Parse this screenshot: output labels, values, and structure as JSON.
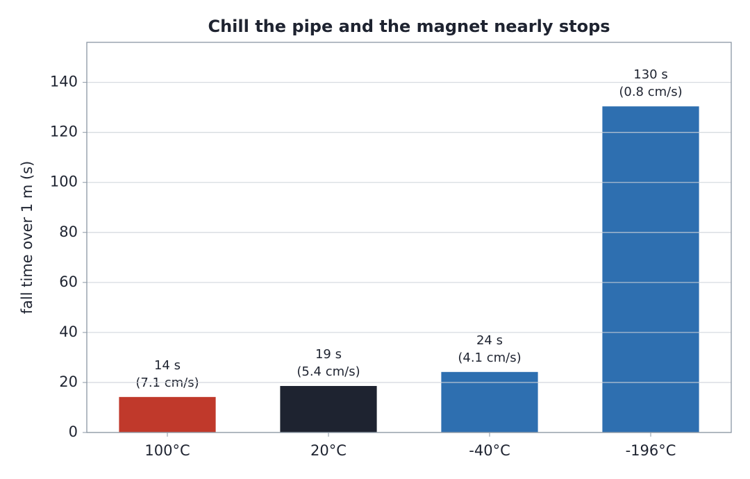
{
  "chart_data": {
    "type": "bar",
    "title": "Chill the pipe and the magnet nearly stops",
    "ylabel": "fall time over 1 m  (s)",
    "categories": [
      "100°C",
      "20°C",
      "-40°C",
      "-196°C"
    ],
    "values": [
      14.2,
      18.6,
      24.2,
      130.4
    ],
    "value_labels": [
      [
        "14 s",
        "(7.1 cm/s)"
      ],
      [
        "19 s",
        "(5.4 cm/s)"
      ],
      [
        "24 s",
        "(4.1 cm/s)"
      ],
      [
        "130 s",
        "(0.8 cm/s)"
      ]
    ],
    "colors": [
      "#c0392b",
      "#1e2330",
      "#2e6fb0",
      "#2e6fb0"
    ],
    "ylim": [
      0,
      156
    ],
    "yticks": [
      0,
      20,
      40,
      60,
      80,
      100,
      120,
      140
    ],
    "grid": true
  }
}
